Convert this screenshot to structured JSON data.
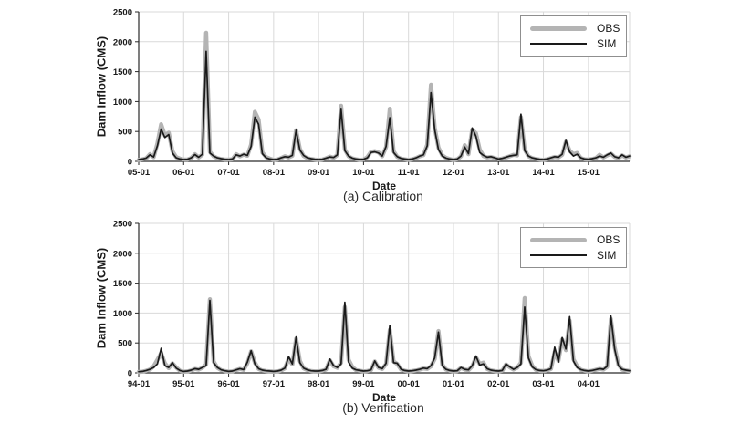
{
  "chart_data": [
    {
      "type": "line",
      "caption": "(a) Calibration",
      "xlabel": "Date",
      "ylabel": "Dam Inflow (CMS)",
      "ylim": [
        0,
        2500
      ],
      "y_ticks": [
        0,
        500,
        1000,
        1500,
        2000,
        2500
      ],
      "x_tick_labels": [
        "05-01",
        "06-01",
        "07-01",
        "08-01",
        "09-01",
        "10-01",
        "11-01",
        "12-01",
        "13-01",
        "14-01",
        "15-01"
      ],
      "grid": true,
      "grid_color": "#d9d9d9",
      "axis_color": "#2a2a2a",
      "tick_text_color": "#1a1a1a",
      "legend_position": "top-right",
      "series": [
        {
          "name": "OBS",
          "color": "#b4b4b4",
          "width": 4.5,
          "values": [
            25,
            35,
            50,
            120,
            70,
            300,
            620,
            430,
            480,
            170,
            70,
            45,
            30,
            30,
            55,
            120,
            65,
            115,
            2150,
            160,
            85,
            55,
            40,
            30,
            30,
            35,
            120,
            85,
            115,
            95,
            280,
            830,
            700,
            150,
            70,
            45,
            25,
            30,
            55,
            85,
            65,
            95,
            520,
            210,
            90,
            55,
            40,
            30,
            25,
            30,
            50,
            80,
            60,
            105,
            930,
            200,
            85,
            50,
            35,
            25,
            30,
            70,
            160,
            170,
            150,
            85,
            240,
            880,
            170,
            75,
            45,
            35,
            25,
            35,
            55,
            85,
            105,
            280,
            1280,
            560,
            230,
            100,
            60,
            40,
            25,
            35,
            85,
            270,
            120,
            530,
            470,
            200,
            90,
            65,
            75,
            55,
            35,
            45,
            65,
            85,
            110,
            100,
            740,
            200,
            85,
            55,
            40,
            30,
            25,
            35,
            55,
            75,
            65,
            110,
            330,
            180,
            120,
            140,
            55,
            35,
            30,
            40,
            55,
            110,
            65,
            100,
            130,
            75,
            55,
            100,
            65,
            85
          ]
        },
        {
          "name": "SIM",
          "color": "#1a1a1a",
          "width": 1.7,
          "values": [
            30,
            40,
            55,
            110,
            75,
            260,
            540,
            400,
            450,
            140,
            60,
            40,
            30,
            35,
            60,
            115,
            70,
            120,
            1840,
            140,
            90,
            60,
            45,
            35,
            30,
            40,
            110,
            90,
            120,
            100,
            250,
            740,
            620,
            130,
            60,
            40,
            30,
            35,
            60,
            80,
            70,
            100,
            520,
            190,
            100,
            60,
            45,
            35,
            30,
            35,
            55,
            75,
            65,
            110,
            870,
            180,
            90,
            55,
            40,
            30,
            35,
            60,
            150,
            160,
            140,
            90,
            250,
            730,
            150,
            80,
            50,
            40,
            30,
            40,
            60,
            90,
            110,
            260,
            1150,
            530,
            200,
            90,
            55,
            40,
            30,
            40,
            90,
            240,
            130,
            560,
            420,
            150,
            100,
            70,
            80,
            60,
            40,
            50,
            70,
            90,
            100,
            110,
            790,
            180,
            90,
            60,
            45,
            35,
            30,
            40,
            60,
            80,
            70,
            120,
            350,
            160,
            90,
            120,
            60,
            40,
            35,
            45,
            60,
            90,
            70,
            110,
            140,
            80,
            60,
            110,
            70,
            90
          ]
        }
      ]
    },
    {
      "type": "line",
      "caption": "(b) Verification",
      "xlabel": "Date",
      "ylabel": "Dam Inflow (CMS)",
      "ylim": [
        0,
        2500
      ],
      "y_ticks": [
        0,
        500,
        1000,
        1500,
        2000,
        2500
      ],
      "x_tick_labels": [
        "94-01",
        "95-01",
        "96-01",
        "97-01",
        "98-01",
        "99-01",
        "00-01",
        "01-01",
        "02-01",
        "03-01",
        "04-01"
      ],
      "grid": true,
      "grid_color": "#d9d9d9",
      "axis_color": "#2a2a2a",
      "tick_text_color": "#1a1a1a",
      "legend_position": "top-right",
      "series": [
        {
          "name": "OBS",
          "color": "#b4b4b4",
          "width": 4.5,
          "values": [
            15,
            20,
            35,
            55,
            110,
            220,
            330,
            160,
            80,
            160,
            90,
            35,
            20,
            25,
            40,
            65,
            55,
            85,
            140,
            1230,
            190,
            85,
            45,
            30,
            20,
            25,
            45,
            65,
            50,
            160,
            360,
            170,
            65,
            40,
            30,
            25,
            20,
            25,
            40,
            75,
            240,
            140,
            570,
            200,
            75,
            45,
            30,
            25,
            25,
            35,
            55,
            210,
            110,
            85,
            170,
            1100,
            220,
            100,
            45,
            35,
            25,
            30,
            45,
            190,
            85,
            65,
            150,
            720,
            190,
            150,
            55,
            35,
            25,
            30,
            40,
            55,
            75,
            65,
            110,
            230,
            700,
            140,
            55,
            35,
            25,
            30,
            85,
            55,
            45,
            110,
            260,
            150,
            170,
            65,
            40,
            30,
            25,
            35,
            140,
            95,
            55,
            85,
            170,
            1250,
            280,
            120,
            50,
            35,
            30,
            40,
            65,
            350,
            200,
            560,
            380,
            870,
            230,
            110,
            50,
            35,
            25,
            35,
            50,
            65,
            55,
            100,
            900,
            430,
            140,
            55,
            40,
            30
          ]
        },
        {
          "name": "SIM",
          "color": "#1a1a1a",
          "width": 1.7,
          "values": [
            20,
            25,
            40,
            60,
            90,
            150,
            410,
            120,
            90,
            170,
            80,
            40,
            25,
            30,
            45,
            70,
            60,
            90,
            120,
            1210,
            170,
            90,
            50,
            35,
            25,
            30,
            50,
            70,
            55,
            180,
            370,
            150,
            70,
            45,
            35,
            30,
            25,
            30,
            45,
            80,
            270,
            150,
            600,
            170,
            80,
            50,
            35,
            30,
            30,
            40,
            60,
            230,
            120,
            90,
            150,
            1180,
            180,
            80,
            50,
            40,
            30,
            35,
            50,
            200,
            90,
            70,
            160,
            795,
            170,
            160,
            60,
            40,
            30,
            35,
            45,
            60,
            80,
            70,
            120,
            250,
            680,
            120,
            60,
            40,
            30,
            35,
            90,
            60,
            50,
            120,
            280,
            130,
            150,
            70,
            45,
            35,
            30,
            40,
            150,
            100,
            60,
            90,
            150,
            1100,
            250,
            100,
            55,
            40,
            35,
            45,
            70,
            430,
            180,
            590,
            400,
            940,
            200,
            90,
            55,
            40,
            30,
            40,
            55,
            70,
            60,
            110,
            950,
            400,
            120,
            60,
            45,
            35
          ]
        }
      ]
    }
  ]
}
